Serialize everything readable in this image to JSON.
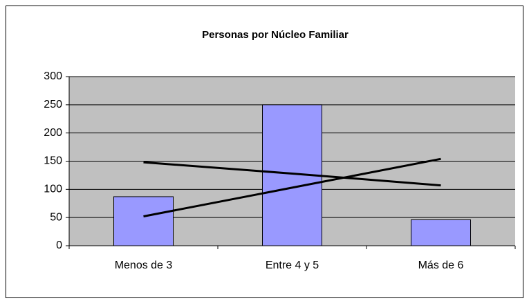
{
  "chart_data": {
    "type": "bar",
    "title": "Personas por Núcleo Familiar",
    "categories": [
      "Menos de 3",
      "Entre 4 y 5",
      "Más de 6"
    ],
    "series": [
      {
        "type": "bar",
        "color": "#9999ff",
        "values": [
          87,
          250,
          46
        ]
      },
      {
        "type": "line",
        "color": "#000000",
        "values": [
          148,
          128,
          107
        ]
      },
      {
        "type": "line",
        "color": "#000000",
        "values": [
          52,
          103,
          154
        ]
      }
    ],
    "ylim": [
      0,
      300
    ],
    "yticks": [
      0,
      50,
      100,
      150,
      200,
      250,
      300
    ],
    "grid": true,
    "plot_background": "#c0c0c0"
  }
}
